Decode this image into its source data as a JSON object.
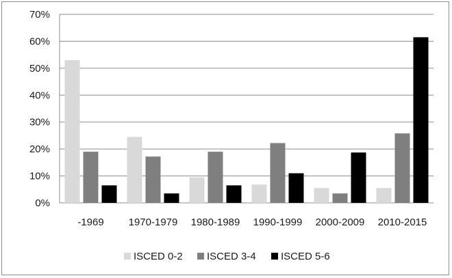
{
  "chart_data": {
    "type": "bar",
    "title": "",
    "xlabel": "",
    "ylabel": "",
    "categories": [
      "-1969",
      "1970-1979",
      "1980-1989",
      "1990-1999",
      "2000-2009",
      "2010-2015"
    ],
    "series": [
      {
        "name": "ISCED 0-2",
        "color": "#d9d9d9",
        "values": [
          53.0,
          24.5,
          9.5,
          6.8,
          5.5,
          5.5
        ]
      },
      {
        "name": "ISCED 3-4",
        "color": "#7f7f7f",
        "values": [
          19.0,
          17.2,
          19.0,
          22.2,
          3.5,
          25.8
        ]
      },
      {
        "name": "ISCED 5-6",
        "color": "#000000",
        "values": [
          6.5,
          3.5,
          6.5,
          11.0,
          18.7,
          61.5
        ]
      }
    ],
    "ylim": [
      0,
      70
    ],
    "yticks": [
      "0%",
      "10%",
      "20%",
      "30%",
      "40%",
      "50%",
      "60%",
      "70%"
    ],
    "grid": true,
    "legend_position": "bottom"
  }
}
